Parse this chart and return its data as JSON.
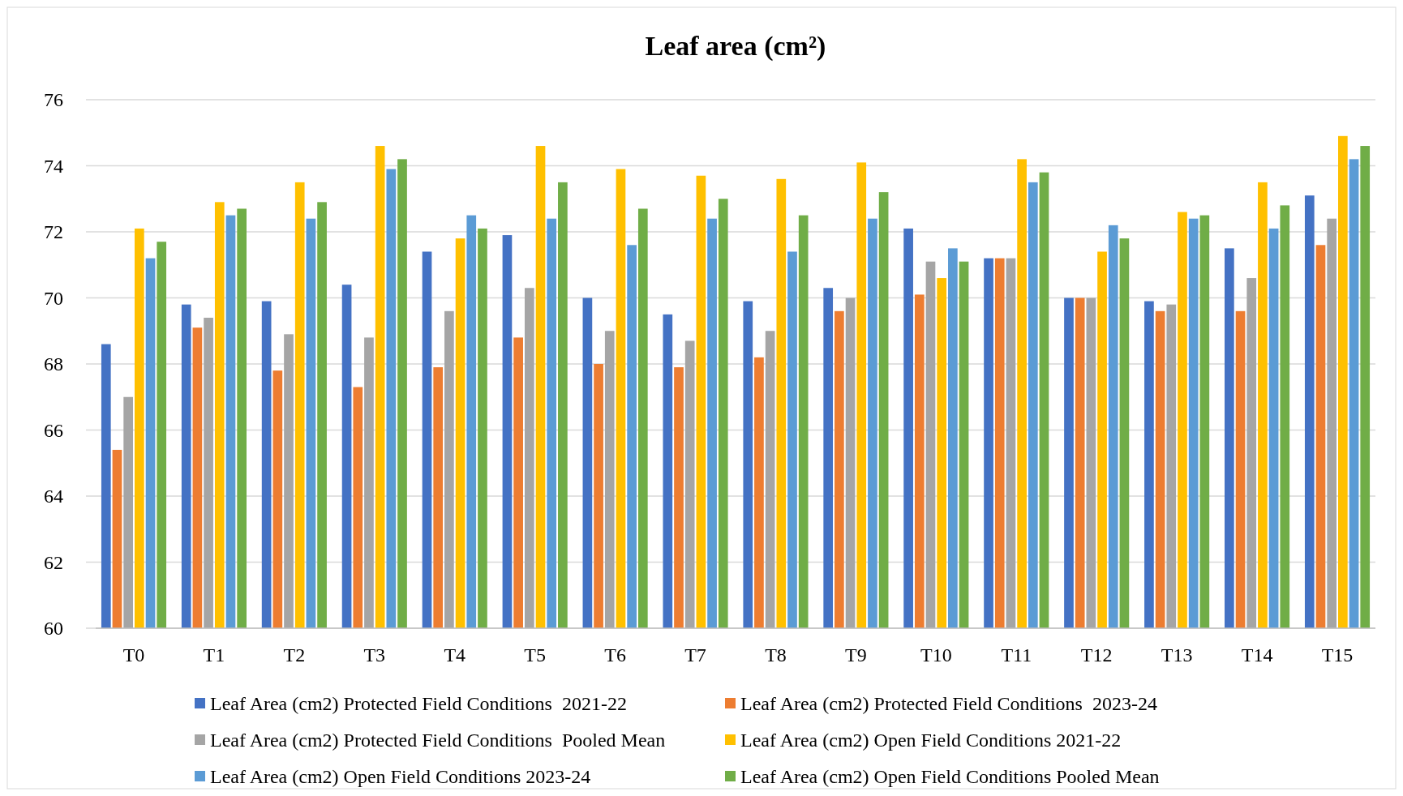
{
  "chart_data": {
    "type": "bar",
    "title": "Leaf area (cm²)",
    "categories": [
      "T0",
      "T1",
      "T2",
      "T3",
      "T4",
      "T5",
      "T6",
      "T7",
      "T8",
      "T9",
      "T10",
      "T11",
      "T12",
      "T13",
      "T14",
      "T15"
    ],
    "series": [
      {
        "name": "Leaf Area (cm2) Protected Field Conditions  2021-22",
        "color": "#4472c4",
        "values": [
          68.6,
          69.8,
          69.9,
          70.4,
          71.4,
          71.9,
          70.0,
          69.5,
          69.9,
          70.3,
          72.1,
          71.2,
          70.0,
          69.9,
          71.5,
          73.1
        ]
      },
      {
        "name": "Leaf Area (cm2) Protected Field Conditions  2023-24",
        "color": "#ed7d31",
        "values": [
          65.4,
          69.1,
          67.8,
          67.3,
          67.9,
          68.8,
          68.0,
          67.9,
          68.2,
          69.6,
          70.1,
          71.2,
          70.0,
          69.6,
          69.6,
          71.6
        ]
      },
      {
        "name": "Leaf Area (cm2) Protected Field Conditions  Pooled Mean",
        "color": "#a5a5a5",
        "values": [
          67.0,
          69.4,
          68.9,
          68.8,
          69.6,
          70.3,
          69.0,
          68.7,
          69.0,
          70.0,
          71.1,
          71.2,
          70.0,
          69.8,
          70.6,
          72.4
        ]
      },
      {
        "name": "Leaf Area (cm2) Open Field Conditions 2021-22",
        "color": "#ffc000",
        "values": [
          72.1,
          72.9,
          73.5,
          74.6,
          71.8,
          74.6,
          73.9,
          73.7,
          73.6,
          74.1,
          70.6,
          74.2,
          71.4,
          72.6,
          73.5,
          74.9
        ]
      },
      {
        "name": "Leaf Area (cm2) Open Field Conditions 2023-24",
        "color": "#5b9bd5",
        "values": [
          71.2,
          72.5,
          72.4,
          73.9,
          72.5,
          72.4,
          71.6,
          72.4,
          71.4,
          72.4,
          71.5,
          73.5,
          72.2,
          72.4,
          72.1,
          74.2
        ]
      },
      {
        "name": "Leaf Area (cm2) Open Field Conditions Pooled Mean",
        "color": "#70ad47",
        "values": [
          71.7,
          72.7,
          72.9,
          74.2,
          72.1,
          73.5,
          72.7,
          73.0,
          72.5,
          73.2,
          71.1,
          73.8,
          71.8,
          72.5,
          72.8,
          74.6
        ]
      }
    ],
    "ylim": [
      60,
      76
    ],
    "yticks": [
      60,
      62,
      64,
      66,
      68,
      70,
      72,
      74,
      76
    ],
    "grid": "y",
    "legend": "bottom"
  }
}
